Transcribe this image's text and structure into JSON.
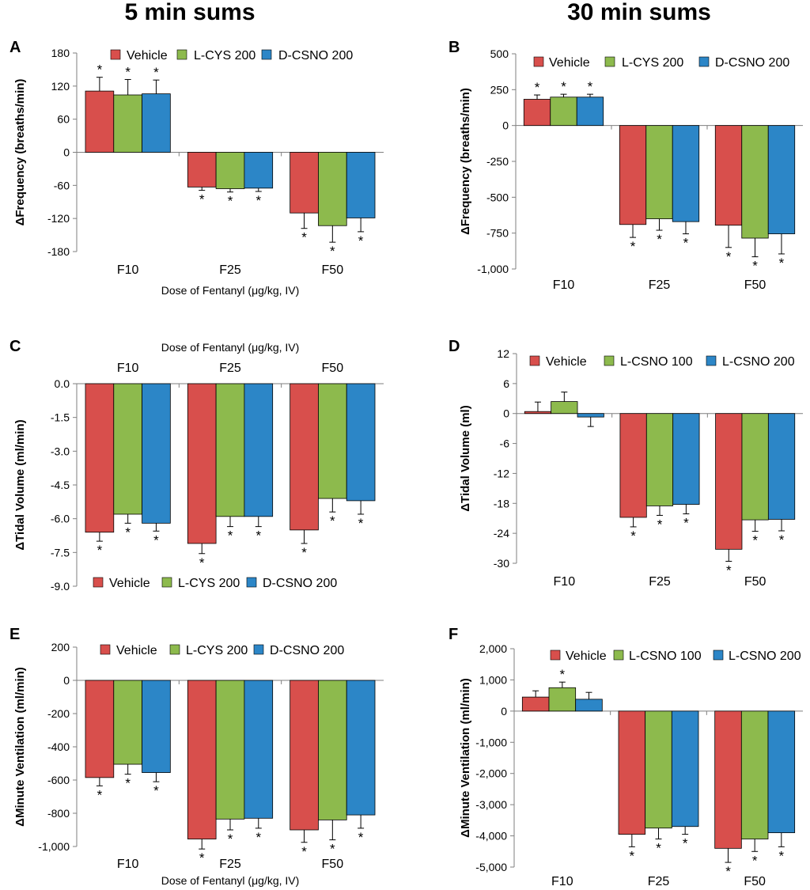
{
  "column_titles": [
    "5 min sums",
    "30 min sums"
  ],
  "colors": {
    "red": "#d84f4c",
    "green": "#8dba4d",
    "blue": "#2c86c7",
    "axis": "#7f7f7f"
  },
  "chart_data": [
    {
      "panel": "A",
      "type": "bar",
      "categories": [
        "F10",
        "F25",
        "F50"
      ],
      "series": [
        {
          "name": "Vehicle",
          "color": "red",
          "values": [
            111,
            -63,
            -110
          ],
          "errors": [
            25,
            6,
            28
          ]
        },
        {
          "name": "L-CYS 200",
          "color": "green",
          "values": [
            104,
            -66,
            -133
          ],
          "errors": [
            28,
            6,
            30
          ]
        },
        {
          "name": "D-CSNO 200",
          "color": "blue",
          "values": [
            106,
            -65,
            -119
          ],
          "errors": [
            25,
            6,
            25
          ]
        }
      ],
      "ylabel": "ΔFrequency (breaths/min)",
      "xlabel": "Dose of Fentanyl (μg/kg, IV)",
      "xlabel_position": "bottom",
      "ylim": [
        -180,
        180
      ],
      "yticks": [
        180,
        120,
        60,
        0,
        -60,
        -120,
        -180
      ],
      "ytick_labels": [
        "180",
        "120",
        "60",
        "0",
        "-60",
        "-120",
        "-180"
      ],
      "legend_position": "top"
    },
    {
      "panel": "B",
      "type": "bar",
      "categories": [
        "F10",
        "F25",
        "F50"
      ],
      "series": [
        {
          "name": "Vehicle",
          "color": "red",
          "values": [
            183,
            -690,
            -695
          ],
          "errors": [
            30,
            90,
            155
          ]
        },
        {
          "name": "L-CYS 200",
          "color": "green",
          "values": [
            198,
            -650,
            -785
          ],
          "errors": [
            20,
            80,
            130
          ]
        },
        {
          "name": "D-CSNO 200",
          "color": "blue",
          "values": [
            198,
            -670,
            -755
          ],
          "errors": [
            20,
            85,
            140
          ]
        }
      ],
      "ylabel": "ΔFrequency (breaths/min)",
      "ylim": [
        -1000,
        500
      ],
      "yticks": [
        500,
        250,
        0,
        -250,
        -500,
        -750,
        -1000
      ],
      "ytick_labels": [
        "500",
        "250",
        "0",
        "-250",
        "-500",
        "-750",
        "-1,000"
      ],
      "legend_position": "top"
    },
    {
      "panel": "C",
      "type": "bar",
      "categories": [
        "F10",
        "F25",
        "F50"
      ],
      "series": [
        {
          "name": "Vehicle",
          "color": "red",
          "values": [
            -6.6,
            -7.1,
            -6.5
          ],
          "errors": [
            0.4,
            0.45,
            0.6
          ]
        },
        {
          "name": "L-CYS 200",
          "color": "green",
          "values": [
            -5.8,
            -5.9,
            -5.1
          ],
          "errors": [
            0.4,
            0.45,
            0.6
          ]
        },
        {
          "name": "D-CSNO 200",
          "color": "blue",
          "values": [
            -6.2,
            -5.9,
            -5.2
          ],
          "errors": [
            0.35,
            0.45,
            0.6
          ]
        }
      ],
      "ylabel": "ΔTidal Volume (ml/min)",
      "xlabel": "Dose of Fentanyl (μg/kg, IV)",
      "xlabel_position": "top",
      "ylim": [
        -9.0,
        0.0
      ],
      "yticks": [
        0.0,
        -1.5,
        -3.0,
        -4.5,
        -6.0,
        -7.5,
        -9.0
      ],
      "ytick_labels": [
        "0.0",
        "-1.5",
        "-3.0",
        "-4.5",
        "-6.0",
        "-7.5",
        "-9.0"
      ],
      "legend_position": "bottom"
    },
    {
      "panel": "D",
      "type": "bar",
      "categories": [
        "F10",
        "F25",
        "F50"
      ],
      "series": [
        {
          "name": "Vehicle",
          "color": "red",
          "values": [
            0.4,
            -20.8,
            -27.2
          ],
          "errors": [
            1.9,
            1.9,
            2.4
          ]
        },
        {
          "name": "L-CSNO 100",
          "color": "green",
          "values": [
            2.4,
            -18.5,
            -21.3
          ],
          "errors": [
            1.9,
            1.9,
            2.3
          ]
        },
        {
          "name": "L-CSNO 200",
          "color": "blue",
          "values": [
            -0.7,
            -18.2,
            -21.2
          ],
          "errors": [
            1.9,
            1.9,
            2.3
          ]
        }
      ],
      "ylabel": "ΔTidal Volume (ml)",
      "ylim": [
        -30,
        12
      ],
      "yticks": [
        12,
        6,
        0,
        -6,
        -12,
        -18,
        -24,
        -30
      ],
      "ytick_labels": [
        "12",
        "6",
        "0",
        "-6",
        "-12",
        "-18",
        "-24",
        "-30"
      ],
      "legend_position": "top"
    },
    {
      "panel": "E",
      "type": "bar",
      "categories": [
        "F10",
        "F25",
        "F50"
      ],
      "series": [
        {
          "name": "Vehicle",
          "color": "red",
          "values": [
            -585,
            -955,
            -900
          ],
          "errors": [
            50,
            60,
            75
          ]
        },
        {
          "name": "L-CYS 200",
          "color": "green",
          "values": [
            -505,
            -835,
            -840
          ],
          "errors": [
            60,
            65,
            120
          ]
        },
        {
          "name": "D-CSNO 200",
          "color": "blue",
          "values": [
            -555,
            -830,
            -810
          ],
          "errors": [
            55,
            60,
            80
          ]
        }
      ],
      "ylabel": "ΔMinute Ventilation (ml/min)",
      "xlabel": "Dose of Fentanyl (μg/kg, IV)",
      "xlabel_position": "bottom",
      "ylim": [
        -1000,
        200
      ],
      "yticks": [
        200,
        0,
        -200,
        -400,
        -600,
        -800,
        -1000
      ],
      "ytick_labels": [
        "200",
        "0",
        "-200",
        "-400",
        "-600",
        "-800",
        "-1,000"
      ],
      "legend_position": "top"
    },
    {
      "panel": "F",
      "type": "bar",
      "categories": [
        "F10",
        "F25",
        "F50"
      ],
      "series": [
        {
          "name": "Vehicle",
          "color": "red",
          "values": [
            450,
            -3950,
            -4400
          ],
          "errors": [
            200,
            400,
            450
          ]
        },
        {
          "name": "L-CSNO 100",
          "color": "green",
          "values": [
            750,
            -3750,
            -4100
          ],
          "errors": [
            180,
            350,
            400
          ]
        },
        {
          "name": "L-CSNO 200",
          "color": "blue",
          "values": [
            380,
            -3700,
            -3900
          ],
          "errors": [
            220,
            250,
            450
          ]
        }
      ],
      "ylabel": "ΔMinute Ventilation (ml/min)",
      "ylim": [
        -5000,
        2000
      ],
      "yticks": [
        2000,
        1000,
        0,
        -1000,
        -2000,
        -3000,
        -4000,
        -5000
      ],
      "ytick_labels": [
        "2,000",
        "1,000",
        "0",
        "-1,000",
        "-2,000",
        "-3,000",
        "-4,000",
        "-5,000"
      ],
      "legend_position": "top"
    }
  ]
}
